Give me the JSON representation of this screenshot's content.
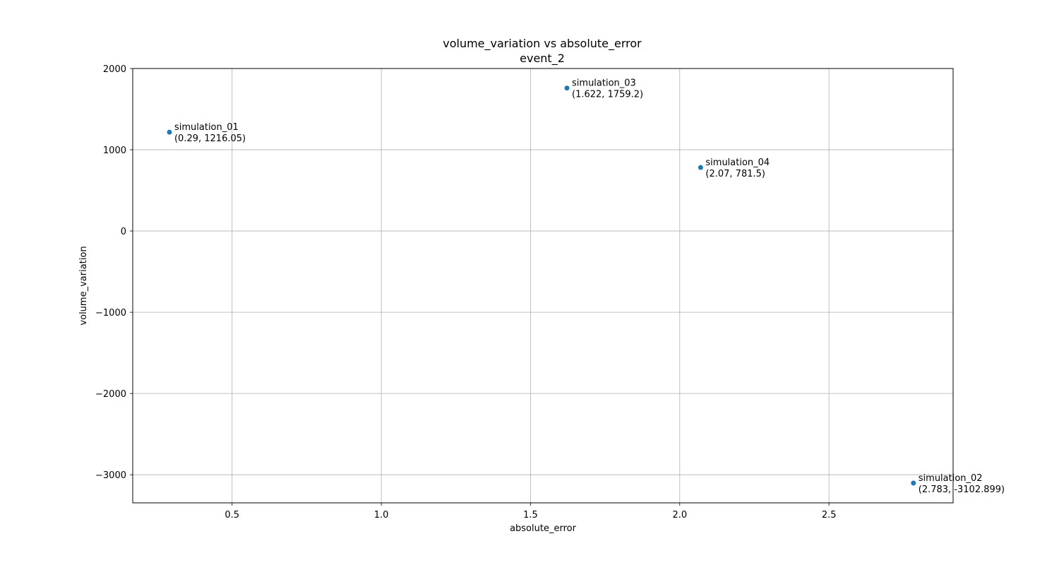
{
  "chart_data": {
    "type": "scatter",
    "title": "volume_variation vs absolute_error",
    "subtitle": "event_2",
    "xlabel": "absolute_error",
    "ylabel": "volume_variation",
    "xlim": [
      0.167,
      2.916
    ],
    "ylim": [
      -3346,
      2000
    ],
    "xticks": [
      0.5,
      1.0,
      1.5,
      2.0,
      2.5
    ],
    "xtick_labels": [
      "0.5",
      "1.0",
      "1.5",
      "2.0",
      "2.5"
    ],
    "yticks": [
      -3000,
      -2000,
      -1000,
      0,
      1000,
      2000
    ],
    "ytick_labels": [
      "−3000",
      "−2000",
      "−1000",
      "0",
      "1000",
      "2000"
    ],
    "grid": true,
    "marker_color": "#1f77b4",
    "points": [
      {
        "name": "simulation_01",
        "x": 0.29,
        "y": 1216.05,
        "coord_label": "(0.29, 1216.05)"
      },
      {
        "name": "simulation_03",
        "x": 1.622,
        "y": 1759.2,
        "coord_label": "(1.622, 1759.2)"
      },
      {
        "name": "simulation_04",
        "x": 2.07,
        "y": 781.5,
        "coord_label": "(2.07, 781.5)"
      },
      {
        "name": "simulation_02",
        "x": 2.783,
        "y": -3102.899,
        "coord_label": "(2.783, -3102.899)"
      }
    ]
  }
}
